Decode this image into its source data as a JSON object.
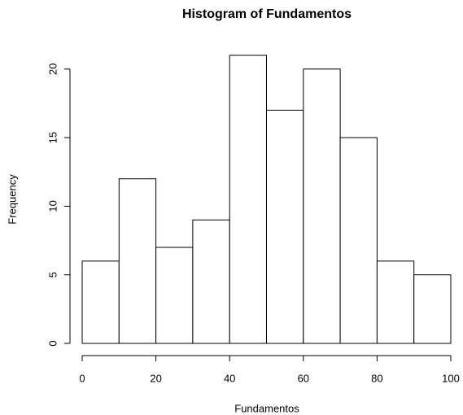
{
  "chart_data": {
    "type": "histogram",
    "title": "Histogram of Fundamentos",
    "x_label": "Fundamentos",
    "y_label": "Frequency",
    "bins": [
      0,
      10,
      20,
      30,
      40,
      50,
      60,
      70,
      80,
      90,
      100
    ],
    "values": [
      6,
      12,
      7,
      9,
      21,
      17,
      20,
      15,
      6,
      5
    ],
    "color": "#ffffff",
    "edge_color": "#000000",
    "xlim": [
      0,
      100
    ],
    "xticks": [
      0,
      20,
      40,
      60,
      80,
      100
    ],
    "ylim": [
      0,
      21
    ],
    "yticks": [
      0,
      5,
      10,
      15,
      20
    ],
    "grid": false
  }
}
